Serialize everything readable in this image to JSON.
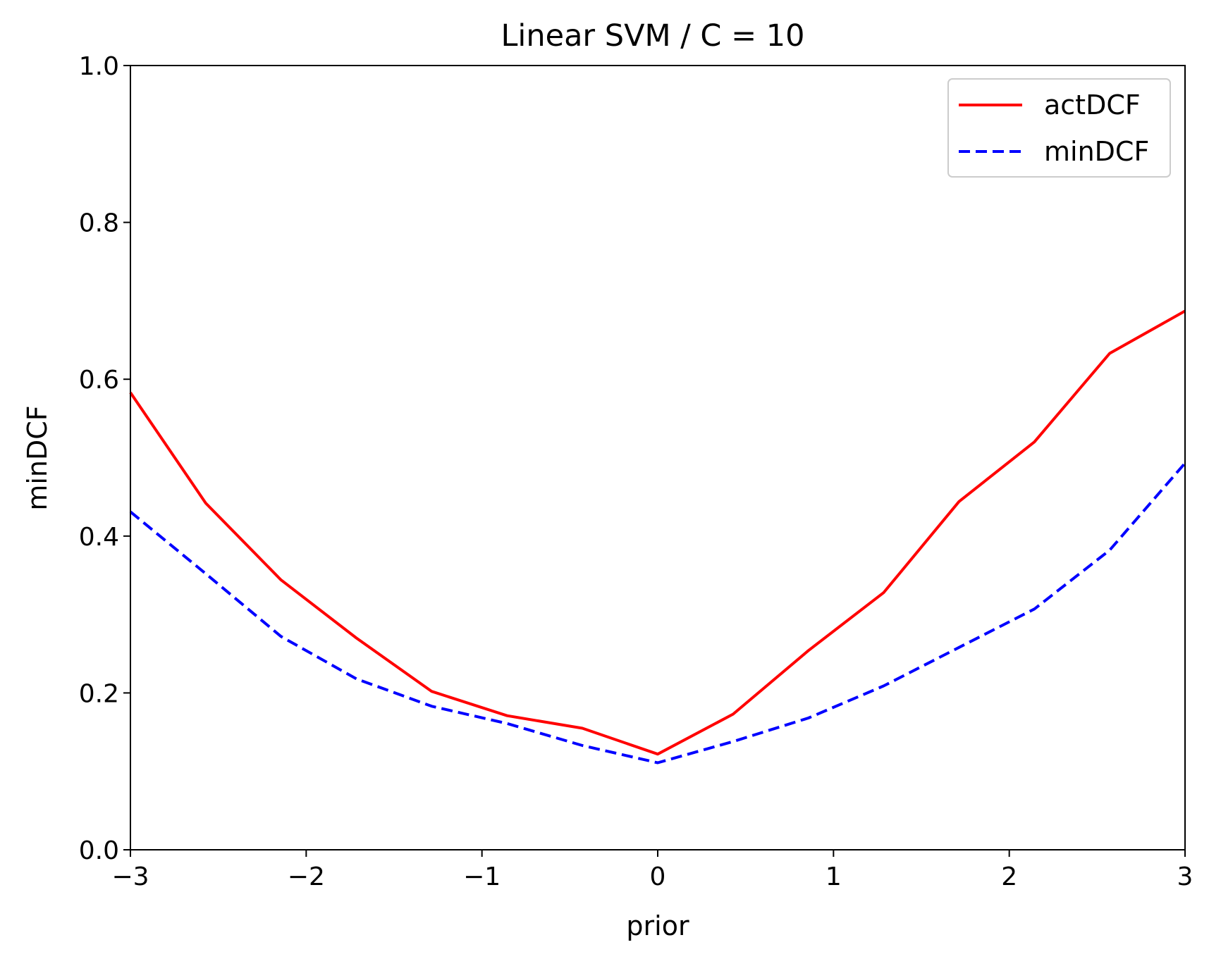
{
  "chart_data": {
    "type": "line",
    "title": "Linear SVM / C = 10",
    "xlabel": "prior",
    "ylabel": "minDCF",
    "xlim": [
      -3,
      3
    ],
    "ylim": [
      0,
      1
    ],
    "xticks": [
      -3,
      -2,
      -1,
      0,
      1,
      2,
      3
    ],
    "xtick_labels": [
      "−3",
      "−2",
      "−1",
      "0",
      "1",
      "2",
      "3"
    ],
    "yticks": [
      0,
      0.2,
      0.4,
      0.6,
      0.8,
      1.0
    ],
    "ytick_labels": [
      "0.0",
      "0.2",
      "0.4",
      "0.6",
      "0.8",
      "1.0"
    ],
    "grid": false,
    "legend": "top-right",
    "x": [
      -3.0,
      -2.5714,
      -2.1429,
      -1.7143,
      -1.2857,
      -0.8571,
      -0.4286,
      0.0,
      0.4286,
      0.8571,
      1.2857,
      1.7143,
      2.1429,
      2.5714,
      3.0
    ],
    "series": [
      {
        "name": "actDCF",
        "color": "#ff0000",
        "style": "solid",
        "values": [
          0.583,
          0.442,
          0.344,
          0.27,
          0.202,
          0.171,
          0.155,
          0.122,
          0.173,
          0.254,
          0.328,
          0.444,
          0.52,
          0.633,
          0.687
        ]
      },
      {
        "name": "minDCF",
        "color": "#0000ff",
        "style": "dashed",
        "values": [
          0.431,
          0.352,
          0.272,
          0.218,
          0.183,
          0.161,
          0.133,
          0.111,
          0.138,
          0.168,
          0.209,
          0.258,
          0.307,
          0.382,
          0.493
        ]
      }
    ]
  }
}
